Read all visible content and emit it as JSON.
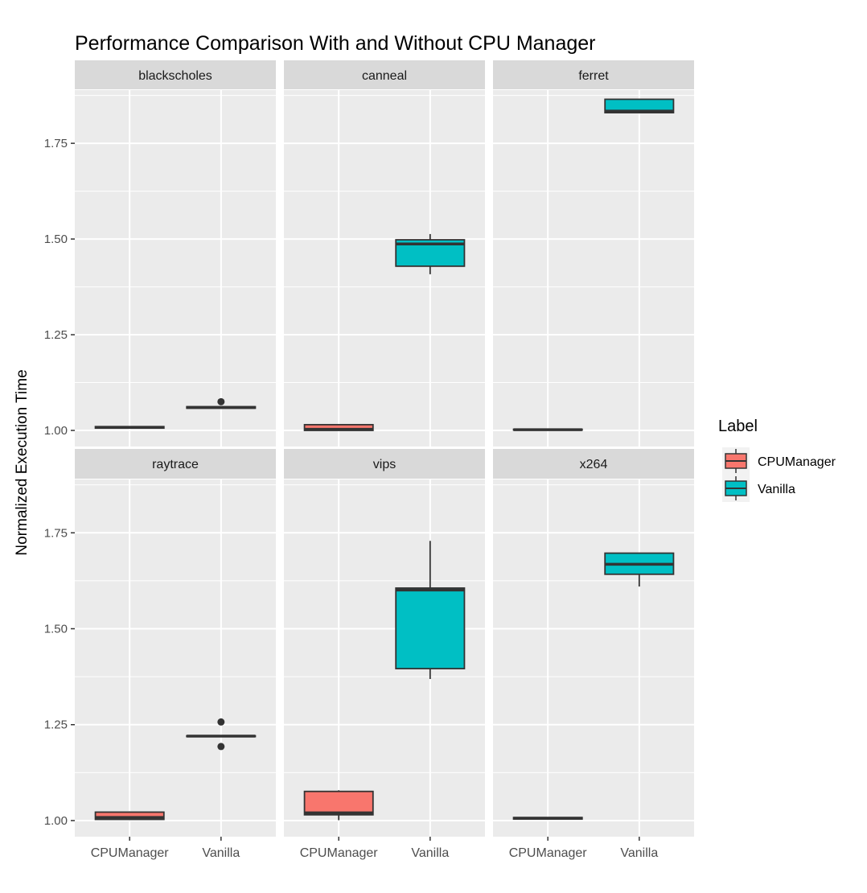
{
  "chart_data": {
    "type": "box",
    "title": "Performance Comparison With and Without CPU Manager",
    "xlabel": "",
    "ylabel": "Normalized Execution Time",
    "categories": [
      "CPUManager",
      "Vanilla"
    ],
    "yticks": [
      "1.00",
      "1.25",
      "1.50",
      "1.75"
    ],
    "ylim": [
      0.958,
      1.889
    ],
    "grid": true,
    "legend": {
      "title": "Label",
      "position": "right",
      "entries": [
        "CPUManager",
        "Vanilla"
      ]
    },
    "colors": {
      "CPUManager": "#F8766D",
      "Vanilla": "#00BFC4",
      "panel": "#EBEBEB",
      "strip": "#D9D9D9"
    },
    "facets": [
      {
        "name": "blackscholes",
        "boxes": [
          {
            "label": "CPUManager",
            "min": 1.006,
            "q1": 1.006,
            "median": 1.008,
            "q3": 1.01,
            "max": 1.01,
            "outliers": []
          },
          {
            "label": "Vanilla",
            "min": 1.058,
            "q1": 1.058,
            "median": 1.06,
            "q3": 1.062,
            "max": 1.062,
            "outliers": [
              1.075
            ]
          }
        ]
      },
      {
        "name": "canneal",
        "boxes": [
          {
            "label": "CPUManager",
            "min": 1.0,
            "q1": 1.0,
            "median": 1.003,
            "q3": 1.015,
            "max": 1.016,
            "outliers": []
          },
          {
            "label": "Vanilla",
            "min": 1.408,
            "q1": 1.429,
            "median": 1.487,
            "q3": 1.498,
            "max": 1.513,
            "outliers": []
          }
        ]
      },
      {
        "name": "ferret",
        "boxes": [
          {
            "label": "CPUManager",
            "min": 1.0,
            "q1": 1.001,
            "median": 1.002,
            "q3": 1.003,
            "max": 1.003,
            "outliers": []
          },
          {
            "label": "Vanilla",
            "min": 1.828,
            "q1": 1.83,
            "median": 1.834,
            "q3": 1.865,
            "max": 1.865,
            "outliers": []
          }
        ]
      },
      {
        "name": "raytrace",
        "boxes": [
          {
            "label": "CPUManager",
            "min": 1.003,
            "q1": 1.003,
            "median": 1.008,
            "q3": 1.022,
            "max": 1.024,
            "outliers": []
          },
          {
            "label": "Vanilla",
            "min": 1.219,
            "q1": 1.219,
            "median": 1.22,
            "q3": 1.221,
            "max": 1.221,
            "outliers": [
              1.257,
              1.193
            ]
          }
        ]
      },
      {
        "name": "vips",
        "boxes": [
          {
            "label": "CPUManager",
            "min": 1.001,
            "q1": 1.015,
            "median": 1.02,
            "q3": 1.076,
            "max": 1.079,
            "outliers": []
          },
          {
            "label": "Vanilla",
            "min": 1.369,
            "q1": 1.396,
            "median": 1.601,
            "q3": 1.606,
            "max": 1.729,
            "outliers": []
          }
        ]
      },
      {
        "name": "x264",
        "boxes": [
          {
            "label": "CPUManager",
            "min": 1.004,
            "q1": 1.004,
            "median": 1.006,
            "q3": 1.008,
            "max": 1.008,
            "outliers": []
          },
          {
            "label": "Vanilla",
            "min": 1.61,
            "q1": 1.642,
            "median": 1.668,
            "q3": 1.697,
            "max": 1.697,
            "outliers": []
          }
        ]
      }
    ]
  }
}
